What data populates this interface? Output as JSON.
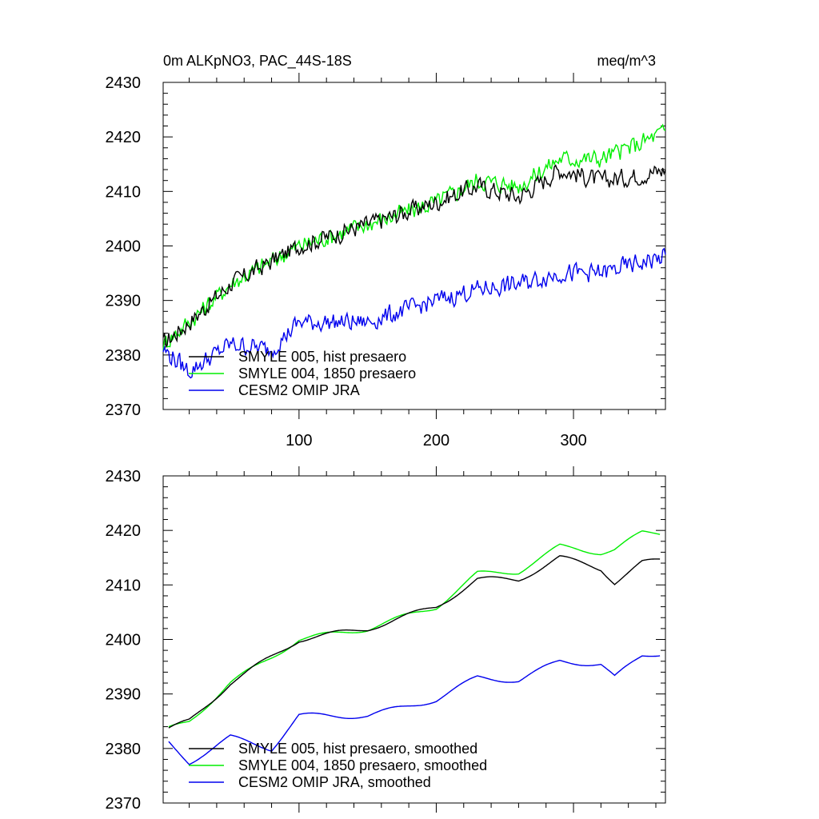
{
  "title_left": "0m ALKpNO3, PAC_44S-18S",
  "title_right": "meq/m^3",
  "colors": {
    "black": "#000000",
    "green": "#00ee00",
    "blue": "#0000ee"
  },
  "chart_data": [
    {
      "type": "line",
      "panel": "top",
      "xlim": [
        1,
        367
      ],
      "ylim": [
        2370,
        2430
      ],
      "xticks": [
        100,
        200,
        300
      ],
      "yticks": [
        2370,
        2380,
        2390,
        2400,
        2410,
        2420,
        2430
      ],
      "grid": false,
      "legend_position": "bottom-left",
      "smoothed": false,
      "series": [
        {
          "name": "SMYLE 005, hist presaero",
          "color": "#000000",
          "x": [
            1,
            20,
            50,
            100,
            150,
            200,
            230,
            260,
            290,
            320,
            350,
            367
          ],
          "y": [
            2382,
            2386,
            2393,
            2400,
            2404,
            2408,
            2411,
            2409,
            2414,
            2412,
            2413,
            2414
          ]
        },
        {
          "name": "SMYLE 004, 1850 presaero",
          "color": "#00ee00",
          "x": [
            1,
            20,
            50,
            100,
            150,
            200,
            230,
            260,
            290,
            320,
            350,
            367
          ],
          "y": [
            2382,
            2386,
            2393,
            2400,
            2404,
            2408,
            2412,
            2411,
            2416,
            2416,
            2419,
            2421
          ]
        },
        {
          "name": "CESM2 OMIP JRA",
          "color": "#0000ee",
          "x": [
            1,
            20,
            50,
            80,
            100,
            150,
            200,
            230,
            260,
            290,
            320,
            350,
            367
          ],
          "y": [
            2381,
            2377,
            2382,
            2381,
            2386,
            2386,
            2390,
            2392,
            2393,
            2395,
            2395,
            2397,
            2398
          ]
        }
      ]
    },
    {
      "type": "line",
      "panel": "bottom",
      "xlim": [
        1,
        367
      ],
      "ylim": [
        2370,
        2430
      ],
      "xticks": [
        100,
        200,
        300
      ],
      "yticks": [
        2370,
        2380,
        2390,
        2400,
        2410,
        2420,
        2430
      ],
      "grid": false,
      "legend_position": "bottom-left",
      "smoothed": true,
      "series": [
        {
          "name": "SMYLE 005, hist presaero, smoothed",
          "color": "#000000",
          "x": [
            5,
            20,
            50,
            100,
            150,
            200,
            230,
            260,
            290,
            320,
            330,
            350,
            363
          ],
          "y": [
            2383.5,
            2385,
            2392,
            2400,
            2402,
            2406,
            2411,
            2411,
            2415,
            2413,
            2410.5,
            2414,
            2414.5
          ]
        },
        {
          "name": "SMYLE 004, 1850 presaero, smoothed",
          "color": "#00ee00",
          "x": [
            5,
            20,
            50,
            100,
            150,
            200,
            230,
            260,
            290,
            320,
            330,
            350,
            363
          ],
          "y": [
            2383.5,
            2385,
            2392,
            2400,
            2402,
            2406,
            2412,
            2412.5,
            2417,
            2416,
            2416.5,
            2419.5,
            2419.5
          ]
        },
        {
          "name": "CESM2 OMIP JRA, smoothed",
          "color": "#0000ee",
          "x": [
            5,
            20,
            50,
            80,
            100,
            150,
            200,
            230,
            260,
            290,
            320,
            330,
            350,
            363
          ],
          "y": [
            2381,
            2377.5,
            2382,
            2380,
            2386,
            2386,
            2389,
            2393,
            2392.5,
            2396,
            2395.5,
            2393,
            2397,
            2397.5
          ]
        }
      ]
    }
  ]
}
